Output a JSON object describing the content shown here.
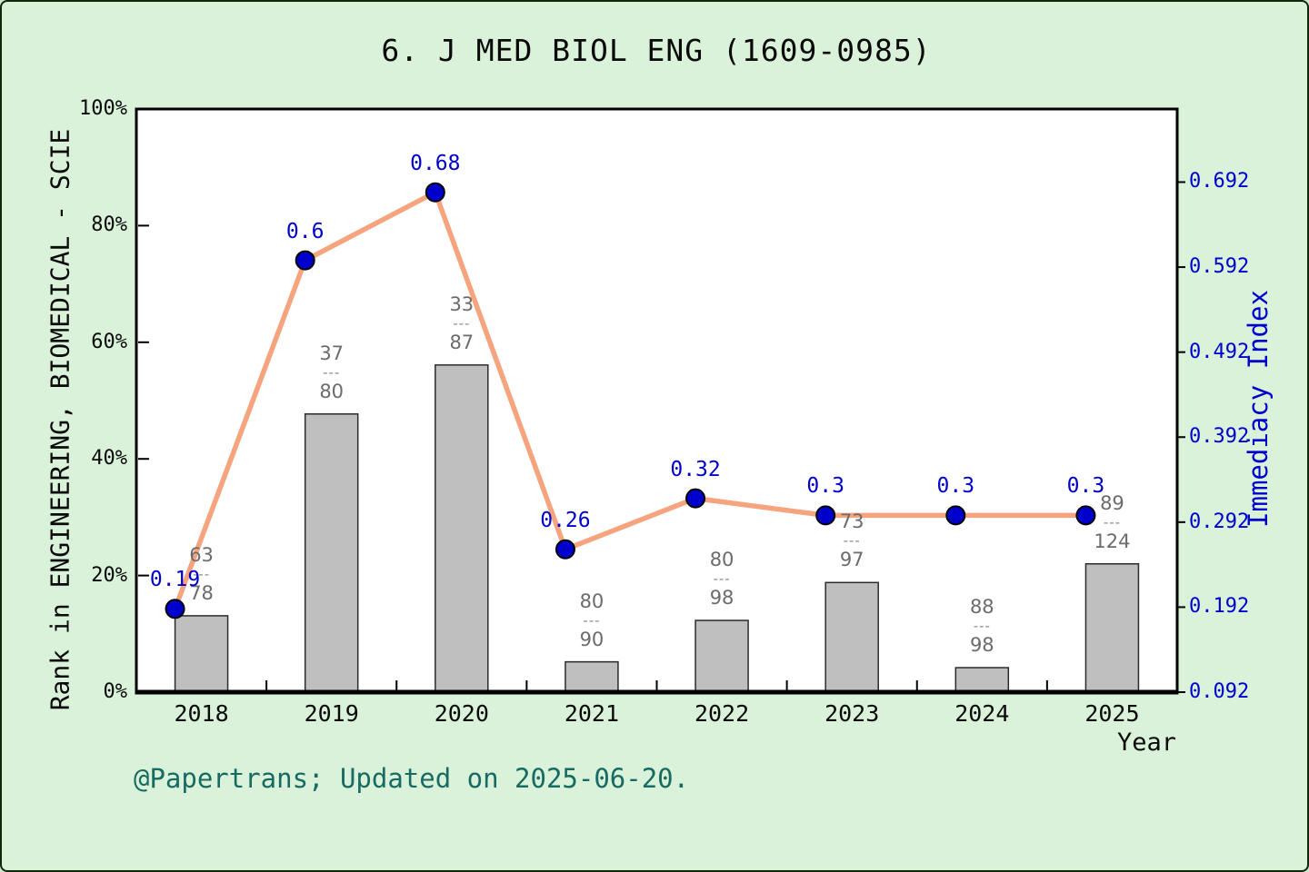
{
  "window": {
    "title": "6. J MED BIOL ENG (1609-0985)",
    "footer_note": "@Papertrans; Updated on 2025-06-20."
  },
  "chart_data": {
    "type": "bar+line",
    "title": "6. J MED BIOL ENG (1609-0985)",
    "categories": [
      "2018",
      "2019",
      "2020",
      "2021",
      "2022",
      "2023",
      "2024",
      "2025"
    ],
    "xlabel": "Year",
    "grid": "off",
    "legend": "none",
    "left_axis": {
      "label": "Rank in ENGINEERING, BIOMEDICAL - SCIE",
      "tick_labels": [
        "0%",
        "20%",
        "40%",
        "60%",
        "80%",
        "100%"
      ],
      "tick_values": [
        0,
        20,
        40,
        60,
        80,
        100
      ],
      "range": [
        0,
        100
      ]
    },
    "right_axis": {
      "label": "Immediacy Index",
      "tick_labels": [
        "0.092",
        "0.192",
        "0.292",
        "0.392",
        "0.492",
        "0.592",
        "0.692"
      ],
      "tick_values": [
        0.092,
        0.192,
        0.292,
        0.392,
        0.492,
        0.592,
        0.692
      ],
      "range": [
        0.092,
        0.778
      ]
    },
    "series": [
      {
        "name": "rank-percentile-bars",
        "type": "bar",
        "axis": "left",
        "values_percent": [
          13.1,
          47.7,
          56.1,
          5.2,
          12.3,
          18.8,
          4.2,
          22.0
        ],
        "fraction_labels": [
          {
            "num": "63",
            "den": "78"
          },
          {
            "num": "37",
            "den": "80"
          },
          {
            "num": "33",
            "den": "87"
          },
          {
            "num": "80",
            "den": "90"
          },
          {
            "num": "80",
            "den": "98"
          },
          {
            "num": "73",
            "den": "97"
          },
          {
            "num": "88",
            "den": "98"
          },
          {
            "num": "89",
            "den": "124"
          }
        ]
      },
      {
        "name": "immediacy-index-line",
        "type": "line",
        "axis": "right",
        "values": [
          0.19,
          0.6,
          0.68,
          0.26,
          0.32,
          0.3,
          0.3,
          0.3
        ],
        "point_labels": [
          "0.19",
          "0.6",
          "0.68",
          "0.26",
          "0.32",
          "0.3",
          "0.3",
          "0.3"
        ]
      }
    ],
    "colors": {
      "page_background": "#d9f2d9",
      "plot_background": "#ffffff",
      "axis_frame": "#000000",
      "bar_fill": "#bfbfbf",
      "bar_border": "#2b2b2b",
      "line": "#f5a47e",
      "marker_fill": "#0000cd",
      "marker_border": "#000000",
      "left_text": "#0a0a0a",
      "right_text": "#0000cd",
      "fraction_text": "#6b6b6b",
      "footer_text": "#176b63"
    }
  }
}
